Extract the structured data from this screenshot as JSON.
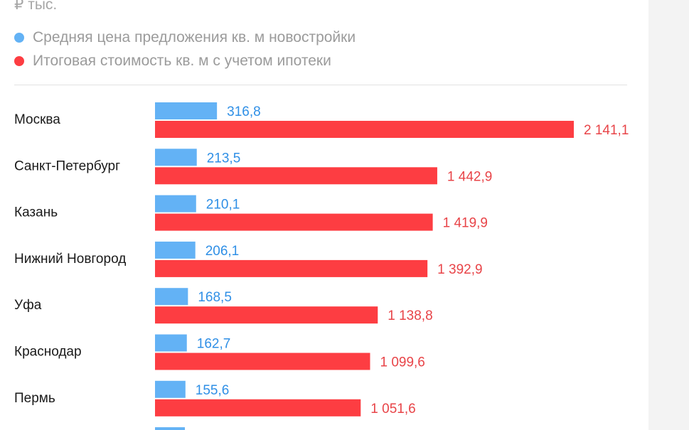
{
  "colors": {
    "series_1": "#63b2f5",
    "series_1_label": "#2f8fe6",
    "series_2": "#fd3d42",
    "series_2_label": "#e84448"
  },
  "chart_data": {
    "type": "bar",
    "orientation": "horizontal",
    "unit": "₽ тыс.",
    "categories": [
      "Москва",
      "Санкт-Петербург",
      "Казань",
      "Нижний Новгород",
      "Уфа",
      "Краснодар",
      "Пермь"
    ],
    "series": [
      {
        "name": "Средняя цена предложения кв. м новостройки",
        "values": [
          316.8,
          213.5,
          210.1,
          206.1,
          168.5,
          162.7,
          155.6
        ],
        "labels": [
          "316,8",
          "213,5",
          "210,1",
          "206,1",
          "168,5",
          "162,7",
          "155,6"
        ]
      },
      {
        "name": "Итоговая стоимость кв. м с учетом ипотеки",
        "values": [
          2141.1,
          1442.9,
          1419.9,
          1392.9,
          1138.8,
          1099.6,
          1051.6
        ],
        "labels": [
          "2 141,1",
          "1 442,9",
          "1 419,9",
          "1 392,9",
          "1 138,8",
          "1 099,6",
          "1 051,6"
        ]
      }
    ],
    "legend_position": "top-left",
    "grid": false
  }
}
